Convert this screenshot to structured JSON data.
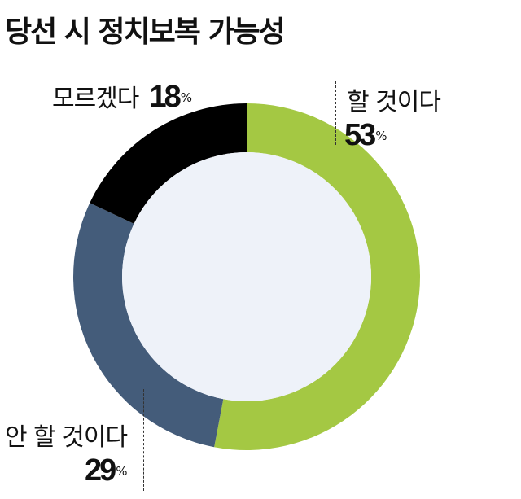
{
  "title": "당선 시 정치보복 가능성",
  "colors": {
    "will": "#a4c843",
    "will_not": "#445c7a",
    "dont_know": "#000000",
    "inner": "#eef2f9"
  },
  "chart_data": {
    "type": "pie",
    "variant": "donut",
    "title": "당선 시 정치보복 가능성",
    "unit": "%",
    "categories": [
      "할 것이다",
      "안 할 것이다",
      "모르겠다"
    ],
    "values": [
      53,
      29,
      18
    ],
    "labels": [
      {
        "text": "할 것이다",
        "value": "53",
        "unit": "%"
      },
      {
        "text": "안 할 것이다",
        "value": "29",
        "unit": "%"
      },
      {
        "text": "모르겠다",
        "value": "18",
        "unit": "%"
      }
    ]
  }
}
